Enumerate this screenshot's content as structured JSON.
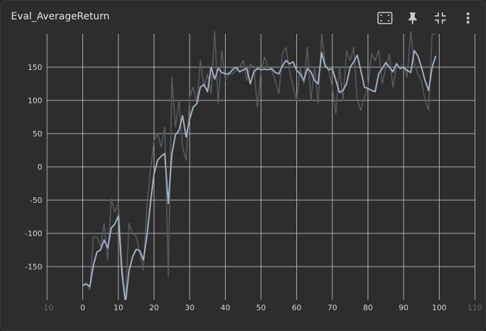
{
  "card": {
    "title": "Eval_AverageReturn",
    "actions": [
      {
        "name": "fit-domain-button",
        "icon": "fit-screen-icon"
      },
      {
        "name": "pin-button",
        "icon": "pin-icon"
      },
      {
        "name": "collapse-button",
        "icon": "collapse-icon"
      },
      {
        "name": "more-options-button",
        "icon": "more-vert-icon"
      }
    ]
  },
  "colors": {
    "background": "#2d2d2d",
    "grid": "#c8c8c8",
    "raw_line": "#555b60",
    "smoothed_line": "#a3b1c4",
    "tick": "#d7d7d7"
  },
  "chart_data": {
    "type": "line",
    "title": "Eval_AverageReturn",
    "xlabel": "",
    "ylabel": "",
    "xlim": [
      -10,
      110
    ],
    "ylim": [
      -200,
      200
    ],
    "x_ticks": [
      0,
      10,
      20,
      30,
      40,
      50,
      60,
      70,
      80,
      90,
      100
    ],
    "x_ticks_dim": [
      "-10",
      "110"
    ],
    "y_ticks": [
      -150,
      -100,
      -50,
      0,
      50,
      100,
      150
    ],
    "grid": true,
    "legend": "none",
    "series": [
      {
        "role": "raw",
        "x": [
          0,
          1,
          2,
          3,
          4,
          5,
          6,
          7,
          8,
          9,
          10,
          11,
          12,
          13,
          14,
          15,
          16,
          17,
          18,
          19,
          20,
          21,
          22,
          23,
          24,
          25,
          26,
          27,
          28,
          29,
          30,
          31,
          32,
          33,
          34,
          35,
          36,
          37,
          38,
          39,
          40,
          41,
          42,
          43,
          44,
          45,
          46,
          47,
          48,
          49,
          50,
          51,
          52,
          53,
          54,
          55,
          56,
          57,
          58,
          59,
          60,
          61,
          62,
          63,
          64,
          65,
          66,
          67,
          68,
          69,
          70,
          71,
          72,
          73,
          74,
          75,
          76,
          77,
          78,
          79,
          80,
          81,
          82,
          83,
          84,
          85,
          86,
          87,
          88,
          89,
          90,
          91,
          92,
          93,
          94,
          95,
          96,
          97,
          98,
          99
        ],
        "y": [
          -180,
          -175,
          -185,
          -105,
          -105,
          -120,
          -85,
          -140,
          -48,
          -68,
          -55,
          -145,
          -200,
          -85,
          -100,
          -105,
          -130,
          -155,
          -60,
          -5,
          40,
          50,
          30,
          60,
          -165,
          135,
          60,
          100,
          30,
          10,
          105,
          120,
          95,
          160,
          120,
          140,
          110,
          205,
          95,
          175,
          130,
          140,
          140,
          145,
          150,
          160,
          130,
          155,
          150,
          90,
          145,
          165,
          150,
          145,
          130,
          110,
          170,
          180,
          145,
          120,
          100,
          150,
          125,
          180,
          100,
          150,
          95,
          200,
          155,
          145,
          120,
          80,
          150,
          100,
          175,
          160,
          180,
          100,
          85,
          105,
          120,
          170,
          160,
          175,
          125,
          150,
          170,
          120,
          150,
          150,
          155,
          135,
          205,
          155,
          140,
          130,
          100,
          85,
          200,
          200
        ]
      },
      {
        "role": "smoothed",
        "x": [
          0,
          1,
          2,
          3,
          4,
          5,
          6,
          7,
          8,
          9,
          10,
          11,
          12,
          13,
          14,
          15,
          16,
          17,
          18,
          19,
          20,
          21,
          22,
          23,
          24,
          25,
          26,
          27,
          28,
          29,
          30,
          31,
          32,
          33,
          34,
          35,
          36,
          37,
          38,
          39,
          40,
          41,
          42,
          43,
          44,
          45,
          46,
          47,
          48,
          49,
          50,
          51,
          52,
          53,
          54,
          55,
          56,
          57,
          58,
          59,
          60,
          61,
          62,
          63,
          64,
          65,
          66,
          67,
          68,
          69,
          70,
          71,
          72,
          73,
          74,
          75,
          76,
          77,
          78,
          79,
          80,
          81,
          82,
          83,
          84,
          85,
          86,
          87,
          88,
          89,
          90,
          91,
          92,
          93,
          94,
          95,
          96,
          97,
          98,
          99
        ],
        "y": [
          -178,
          -176,
          -180,
          -148,
          -128,
          -125,
          -110,
          -122,
          -92,
          -86,
          -74,
          -160,
          -205,
          -156,
          -135,
          -124,
          -126,
          -140,
          -104,
          -55,
          -10,
          10,
          16,
          20,
          -55,
          20,
          48,
          55,
          77,
          45,
          72,
          90,
          95,
          120,
          124,
          113,
          150,
          132,
          148,
          142,
          140,
          140,
          146,
          150,
          143,
          146,
          148,
          125,
          143,
          148,
          146,
          147,
          146,
          148,
          142,
          140,
          152,
          160,
          155,
          158,
          145,
          140,
          130,
          148,
          143,
          130,
          125,
          172,
          152,
          146,
          148,
          130,
          112,
          115,
          125,
          150,
          158,
          168,
          145,
          120,
          118,
          115,
          113,
          140,
          148,
          157,
          150,
          143,
          155,
          148,
          150,
          145,
          142,
          175,
          167,
          150,
          130,
          115,
          150,
          167
        ]
      }
    ]
  }
}
